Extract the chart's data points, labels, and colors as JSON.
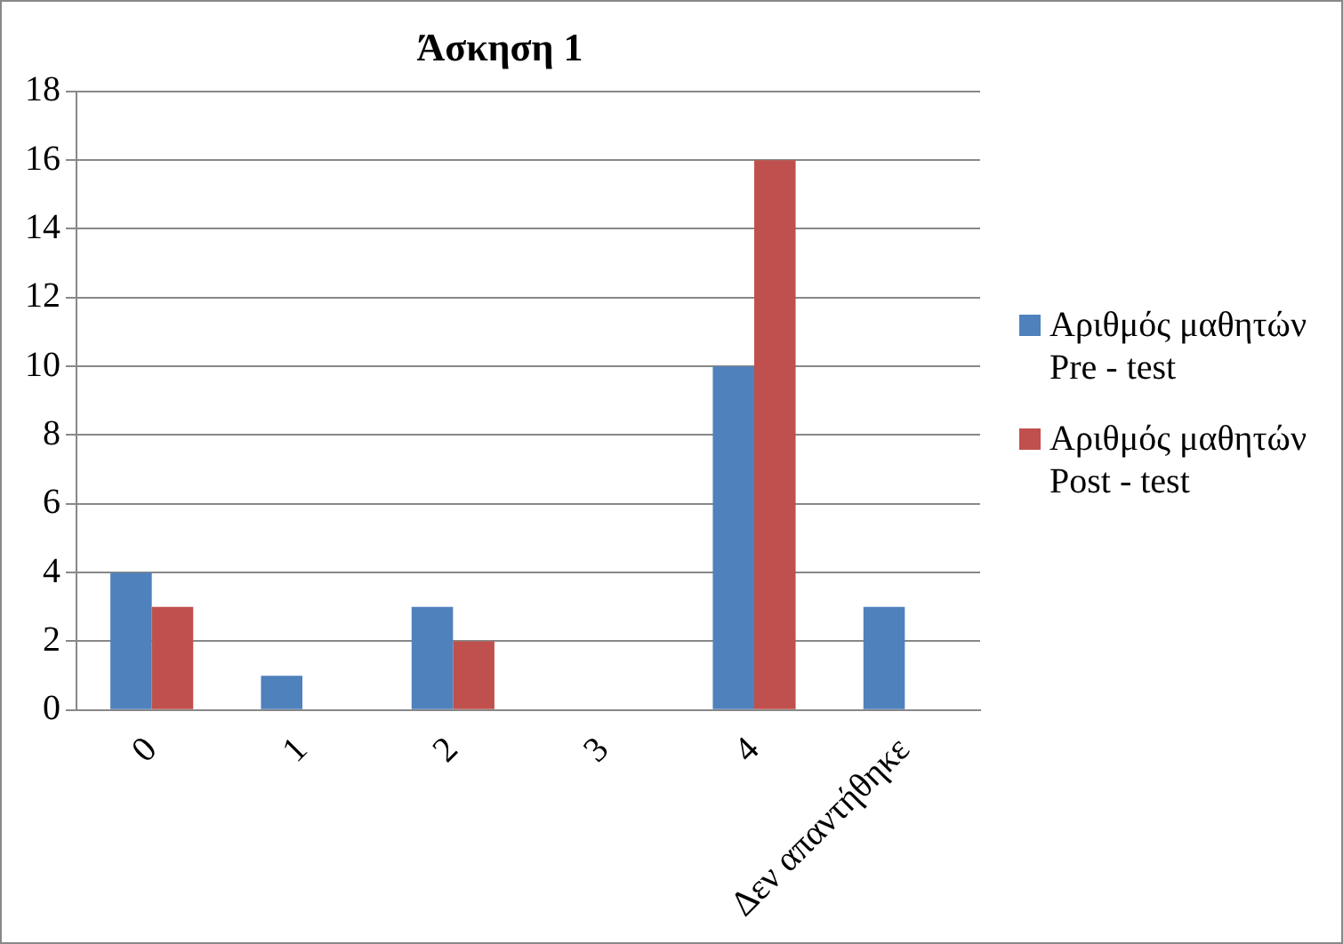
{
  "chart_data": {
    "type": "bar",
    "title": "Άσκηση 1",
    "categories": [
      "0",
      "1",
      "2",
      "3",
      "4",
      "Δεν απαντήθηκε"
    ],
    "series": [
      {
        "name": "Αριθμός μαθητών Pre - test",
        "color": "#4f81bd",
        "values": [
          4,
          1,
          3,
          0,
          10,
          3
        ]
      },
      {
        "name": "Αριθμός μαθητών Post - test",
        "color": "#c0504d",
        "values": [
          3,
          0,
          2,
          0,
          16,
          0
        ]
      }
    ],
    "ylim": [
      0,
      18
    ],
    "yticks": [
      0,
      2,
      4,
      6,
      8,
      10,
      12,
      14,
      16,
      18
    ],
    "grid": "y",
    "legend": "right"
  }
}
